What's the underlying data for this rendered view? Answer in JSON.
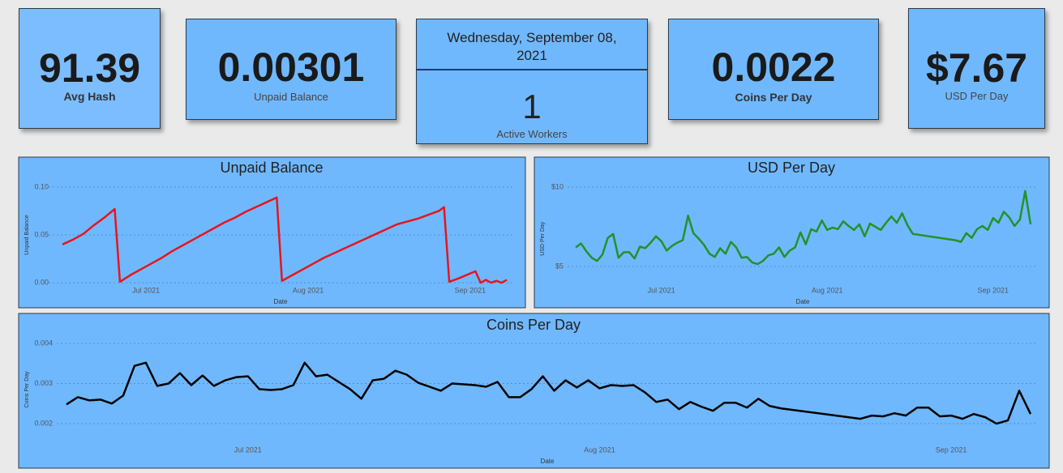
{
  "cards": [
    {
      "value": "91.39",
      "label": "Avg Hash"
    },
    {
      "value": "0.00301",
      "label": "Unpaid Balance"
    },
    {
      "value": "0.0022",
      "label": "Coins Per Day"
    },
    {
      "value": "$7.67",
      "label": "USD Per Day"
    }
  ],
  "date_card": {
    "date": "Wednesday, September 08, 2021",
    "value": "1",
    "label": "Active Workers"
  },
  "chart_data": [
    {
      "type": "line",
      "title": "Unpaid Balance",
      "x_label": "Date",
      "y_label": "Unpaid Balance",
      "color": "#e8141c",
      "grid": true,
      "x": [
        166,
        168,
        170,
        172,
        174,
        176,
        177,
        179,
        181,
        183,
        185,
        187,
        189,
        191,
        193,
        195,
        197,
        199,
        201,
        203,
        205,
        207,
        208,
        210,
        212,
        214,
        216,
        218,
        220,
        222,
        224,
        226,
        228,
        230,
        232,
        234,
        236,
        238,
        239,
        240,
        242,
        245,
        246,
        247,
        248,
        249,
        250,
        251
      ],
      "values": [
        0.04,
        0.045,
        0.051,
        0.06,
        0.068,
        0.077,
        0.001,
        0.008,
        0.014,
        0.02,
        0.026,
        0.033,
        0.039,
        0.045,
        0.051,
        0.057,
        0.063,
        0.068,
        0.074,
        0.079,
        0.084,
        0.089,
        0.002,
        0.008,
        0.014,
        0.02,
        0.026,
        0.031,
        0.036,
        0.041,
        0.046,
        0.051,
        0.056,
        0.061,
        0.064,
        0.067,
        0.071,
        0.075,
        0.079,
        0.001,
        0.005,
        0.012,
        0.0,
        0.003,
        0.0,
        0.002,
        0.0,
        0.003
      ],
      "xlim": [
        166,
        251
      ],
      "xticks": [
        {
          "value": 182,
          "label": "Jul 2021"
        },
        {
          "value": 213,
          "label": "Aug 2021"
        },
        {
          "value": 244,
          "label": "Sep 2021"
        }
      ],
      "ylim": [
        -0.005,
        0.105
      ],
      "yticks": [
        {
          "value": 0,
          "label": "0.00"
        },
        0.05,
        {
          "value": 0.1,
          "label": "0.10"
        }
      ]
    },
    {
      "type": "line",
      "title": "USD Per Day",
      "x_label": "Date",
      "y_label": "USD Per Day",
      "color": "#22922a",
      "grid": true,
      "x": [
        166,
        167,
        168,
        169,
        170,
        171,
        172,
        173,
        174,
        175,
        176,
        177,
        178,
        179,
        180,
        181,
        182,
        183,
        184,
        185,
        186,
        187,
        188,
        189,
        190,
        191,
        192,
        193,
        194,
        195,
        196,
        197,
        198,
        199,
        200,
        201,
        202,
        203,
        204,
        205,
        206,
        207,
        208,
        209,
        210,
        211,
        212,
        213,
        214,
        215,
        216,
        217,
        218,
        219,
        220,
        221,
        222,
        223,
        224,
        225,
        226,
        227,
        228,
        229,
        237,
        238,
        239,
        240,
        241,
        242,
        243,
        244,
        245,
        246,
        247,
        248,
        249,
        250,
        251
      ],
      "values": [
        6.2,
        6.45,
        5.95,
        5.55,
        5.35,
        5.75,
        6.8,
        7.05,
        5.55,
        5.9,
        5.9,
        5.5,
        6.25,
        6.15,
        6.5,
        6.9,
        6.6,
        6.0,
        6.3,
        6.5,
        6.65,
        8.2,
        7.1,
        6.75,
        6.35,
        5.8,
        5.6,
        6.15,
        5.8,
        6.55,
        6.2,
        5.55,
        5.6,
        5.25,
        5.15,
        5.35,
        5.7,
        5.8,
        6.2,
        5.6,
        6.0,
        6.2,
        7.15,
        6.4,
        7.35,
        7.2,
        7.9,
        7.3,
        7.45,
        7.35,
        7.85,
        7.55,
        7.3,
        7.65,
        6.9,
        7.7,
        7.5,
        7.3,
        7.75,
        8.15,
        7.75,
        8.35,
        7.6,
        7.05,
        6.65,
        6.55,
        7.1,
        6.8,
        7.35,
        7.55,
        7.3,
        8.05,
        7.75,
        8.45,
        8.1,
        7.55,
        7.95,
        9.75,
        7.65
      ],
      "xlim": [
        166,
        251
      ],
      "xticks": [
        {
          "value": 182,
          "label": "Jul 2021"
        },
        {
          "value": 213,
          "label": "Aug 2021"
        },
        {
          "value": 244,
          "label": "Sep 2021"
        }
      ],
      "ylim": [
        3,
        10.5
      ],
      "yticks": [
        {
          "value": 5,
          "label": "$5"
        },
        {
          "value": 10,
          "label": "$10"
        }
      ]
    },
    {
      "type": "line",
      "title": "Coins Per Day",
      "x_label": "Date",
      "y_label": "Coins Per Day",
      "color": "#000000",
      "grid": true,
      "x": [
        166,
        167,
        168,
        169,
        170,
        171,
        172,
        173,
        174,
        175,
        176,
        177,
        178,
        179,
        180,
        181,
        182,
        183,
        184,
        185,
        186,
        187,
        188,
        189,
        190,
        191,
        192,
        193,
        194,
        195,
        196,
        197,
        198,
        199,
        200,
        201,
        202,
        203,
        204,
        205,
        206,
        207,
        208,
        209,
        210,
        211,
        212,
        213,
        214,
        215,
        216,
        217,
        218,
        219,
        220,
        221,
        222,
        223,
        224,
        225,
        226,
        227,
        228,
        229,
        236,
        237,
        238,
        239,
        240,
        241,
        242,
        243,
        244,
        245,
        246,
        247,
        248,
        249,
        250,
        251
      ],
      "values": [
        0.00248,
        0.00266,
        0.00258,
        0.0026,
        0.0025,
        0.0027,
        0.00344,
        0.00352,
        0.00294,
        0.003,
        0.00326,
        0.00296,
        0.0032,
        0.00294,
        0.00308,
        0.00316,
        0.00318,
        0.00286,
        0.00284,
        0.00286,
        0.00296,
        0.00352,
        0.00318,
        0.00322,
        0.00304,
        0.00286,
        0.00262,
        0.00308,
        0.00312,
        0.00332,
        0.00322,
        0.00302,
        0.00292,
        0.00282,
        0.003,
        0.00298,
        0.00296,
        0.00292,
        0.00304,
        0.00266,
        0.00266,
        0.00286,
        0.00318,
        0.00282,
        0.00308,
        0.0029,
        0.00308,
        0.00288,
        0.00296,
        0.00294,
        0.00296,
        0.00278,
        0.00254,
        0.0026,
        0.00236,
        0.00254,
        0.00242,
        0.00232,
        0.00252,
        0.00252,
        0.0024,
        0.00262,
        0.00244,
        0.00238,
        0.00212,
        0.0022,
        0.00218,
        0.00226,
        0.0022,
        0.0024,
        0.0024,
        0.00218,
        0.0022,
        0.00212,
        0.00224,
        0.00216,
        0.002,
        0.00208,
        0.00282,
        0.00224
      ],
      "xlim": [
        166,
        251
      ],
      "xticks": [
        {
          "value": 182,
          "label": "Jul 2021"
        },
        {
          "value": 213,
          "label": "Aug 2021"
        },
        {
          "value": 244,
          "label": "Sep 2021"
        }
      ],
      "ylim": [
        0.0015,
        0.0042
      ],
      "yticks": [
        0.002,
        0.003,
        0.004
      ]
    }
  ]
}
